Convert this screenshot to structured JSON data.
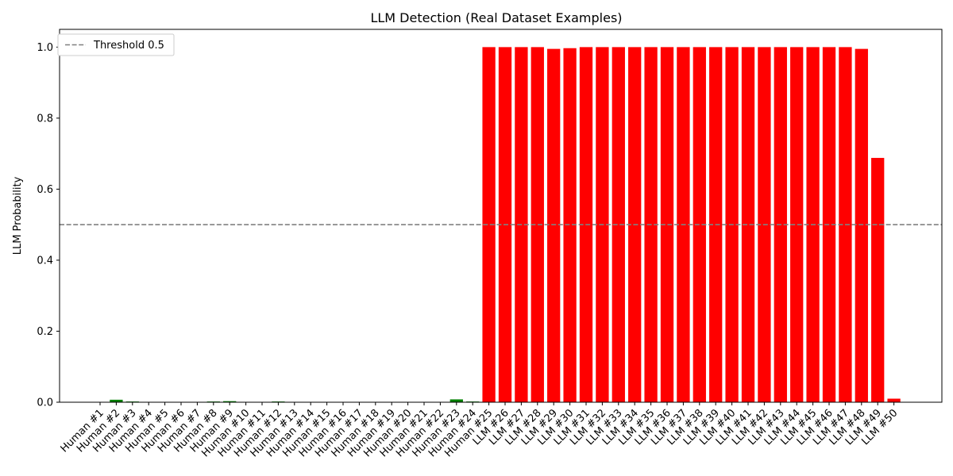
{
  "chart_data": {
    "type": "bar",
    "title": "LLM Detection (Real Dataset Examples)",
    "xlabel": "",
    "ylabel": "LLM Probability",
    "ylim": [
      0,
      1.05
    ],
    "yticks": [
      0.0,
      0.2,
      0.4,
      0.6,
      0.8,
      1.0
    ],
    "ytick_labels": [
      "0.0",
      "0.2",
      "0.4",
      "0.6",
      "0.8",
      "1.0"
    ],
    "grid": false,
    "legend_position": "top-left",
    "categories": [
      "Human #1",
      "Human #2",
      "Human #3",
      "Human #4",
      "Human #5",
      "Human #6",
      "Human #7",
      "Human #8",
      "Human #9",
      "Human #10",
      "Human #11",
      "Human #12",
      "Human #13",
      "Human #14",
      "Human #15",
      "Human #16",
      "Human #17",
      "Human #18",
      "Human #19",
      "Human #20",
      "Human #21",
      "Human #22",
      "Human #23",
      "Human #24",
      "Human #25",
      "LLM #26",
      "LLM #27",
      "LLM #28",
      "LLM #29",
      "LLM #30",
      "LLM #31",
      "LLM #32",
      "LLM #33",
      "LLM #34",
      "LLM #35",
      "LLM #36",
      "LLM #37",
      "LLM #38",
      "LLM #39",
      "LLM #40",
      "LLM #41",
      "LLM #42",
      "LLM #43",
      "LLM #44",
      "LLM #45",
      "LLM #46",
      "LLM #47",
      "LLM #48",
      "LLM #49",
      "LLM #50"
    ],
    "values": [
      0.0005,
      0.007,
      0.002,
      0.0005,
      0.0005,
      0.0005,
      0.0005,
      0.002,
      0.003,
      0.0005,
      0.0005,
      0.002,
      0.0005,
      0.0005,
      0.0005,
      0.0005,
      0.0005,
      0.0005,
      0.0005,
      0.0005,
      0.0005,
      0.0005,
      0.008,
      0.002,
      1.0,
      1.0,
      1.0,
      1.0,
      0.995,
      0.997,
      1.0,
      1.0,
      1.0,
      1.0,
      1.0,
      1.0,
      1.0,
      1.0,
      1.0,
      1.0,
      1.0,
      1.0,
      1.0,
      1.0,
      1.0,
      1.0,
      1.0,
      0.995,
      0.688,
      0.01
    ],
    "bar_colors": [
      "#008000",
      "#008000",
      "#008000",
      "#008000",
      "#008000",
      "#008000",
      "#008000",
      "#008000",
      "#008000",
      "#008000",
      "#008000",
      "#008000",
      "#008000",
      "#008000",
      "#008000",
      "#008000",
      "#008000",
      "#008000",
      "#008000",
      "#008000",
      "#008000",
      "#008000",
      "#008000",
      "#008000",
      "#ff0000",
      "#ff0000",
      "#ff0000",
      "#ff0000",
      "#ff0000",
      "#ff0000",
      "#ff0000",
      "#ff0000",
      "#ff0000",
      "#ff0000",
      "#ff0000",
      "#ff0000",
      "#ff0000",
      "#ff0000",
      "#ff0000",
      "#ff0000",
      "#ff0000",
      "#ff0000",
      "#ff0000",
      "#ff0000",
      "#ff0000",
      "#ff0000",
      "#ff0000",
      "#ff0000",
      "#ff0000",
      "#ff0000"
    ],
    "threshold": {
      "value": 0.5,
      "label": "Threshold 0.5",
      "color": "#808080"
    }
  }
}
